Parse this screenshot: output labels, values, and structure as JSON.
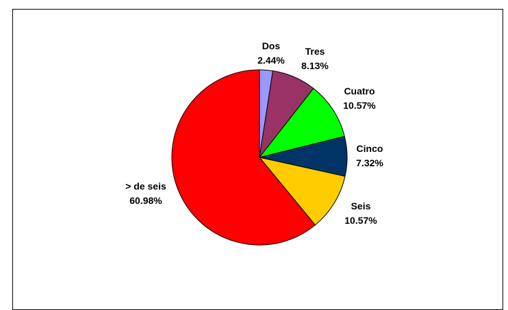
{
  "chart_data": {
    "type": "pie",
    "title": "",
    "slices": [
      {
        "category": "Dos",
        "percent_label": "2.44%",
        "value": 2.44,
        "color": "#9999ff"
      },
      {
        "category": "Tres",
        "percent_label": "8.13%",
        "value": 8.13,
        "color": "#993366"
      },
      {
        "category": "Cuatro",
        "percent_label": "10.57%",
        "value": 10.57,
        "color": "#00ff00"
      },
      {
        "category": "Cinco",
        "percent_label": "7.32%",
        "value": 7.32,
        "color": "#003366"
      },
      {
        "category": "Seis",
        "percent_label": "10.57%",
        "value": 10.57,
        "color": "#ffcc00"
      },
      {
        "category": "> de seis",
        "percent_label": "60.98%",
        "value": 60.98,
        "color": "#ff0000"
      }
    ],
    "start_angle": "12 o'clock",
    "direction": "clockwise",
    "legend": "none"
  }
}
